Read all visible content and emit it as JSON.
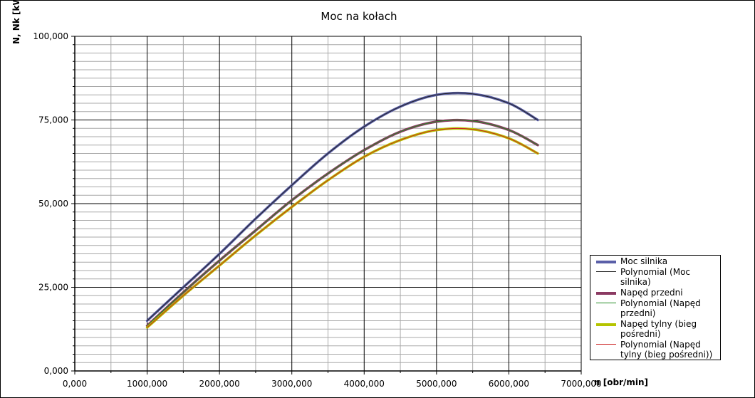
{
  "chart_data": {
    "type": "line",
    "title": "Moc na kołach",
    "xlabel": "n [obr/min]",
    "ylabel": "N, Nk [kW]",
    "xlim": [
      0,
      7000
    ],
    "ylim": [
      0,
      100
    ],
    "x_ticks": [
      "0,000",
      "1000,000",
      "2000,000",
      "3000,000",
      "4000,000",
      "5000,000",
      "6000,000",
      "7000,000"
    ],
    "y_ticks": [
      "0,000",
      "25,000",
      "50,000",
      "75,000",
      "100,000"
    ],
    "grid": true,
    "legend_position": "right",
    "x": [
      1000,
      1500,
      2000,
      2500,
      3000,
      3500,
      4000,
      4500,
      5000,
      5500,
      6000,
      6400
    ],
    "series": [
      {
        "name": "Moc silnika",
        "color": "#5a5fa8",
        "width": 3.5,
        "values": [
          15,
          25,
          35,
          45.5,
          55.5,
          65,
          73,
          79,
          82.5,
          82.8,
          80,
          75
        ]
      },
      {
        "name": "Polynomial (Moc silnika)",
        "color": "#222222",
        "width": 1,
        "values": [
          15,
          25,
          35,
          45.5,
          55.5,
          65,
          73,
          79,
          82.5,
          82.8,
          80,
          75
        ]
      },
      {
        "name": "Napęd przedni",
        "color": "#8b3a62",
        "width": 3.5,
        "values": [
          13.5,
          23.5,
          33,
          42,
          51,
          59,
          66,
          71.5,
          74.5,
          74.7,
          72,
          67.5
        ]
      },
      {
        "name": "Polynomial (Napęd przedni)",
        "color": "#228b22",
        "width": 1,
        "values": [
          13.5,
          23.5,
          33,
          42,
          51,
          59,
          66,
          71.5,
          74.5,
          74.7,
          72,
          67.5
        ]
      },
      {
        "name": "Napęd tylny (bieg pośredni)",
        "color": "#b5c400",
        "width": 3.5,
        "values": [
          13,
          22.5,
          31.5,
          40.5,
          49,
          57,
          64,
          69,
          72,
          72.2,
          69.5,
          65
        ]
      },
      {
        "name": "Polynomial (Napęd tylny (bieg pośredni))",
        "color": "#cc2222",
        "width": 1,
        "values": [
          13,
          22.5,
          31.5,
          40.5,
          49,
          57,
          64,
          69,
          72,
          72.2,
          69.5,
          65
        ]
      }
    ],
    "legend_entries": [
      [
        "Moc silnika"
      ],
      [
        "Polynomial (Moc",
        "silnika)"
      ],
      [
        "Napęd przedni"
      ],
      [
        "Polynomial (Napęd",
        "przedni)"
      ],
      [
        "Napęd tylny (bieg",
        "pośredni)"
      ],
      [
        "Polynomial (Napęd",
        "tylny (bieg pośredni))"
      ]
    ]
  }
}
